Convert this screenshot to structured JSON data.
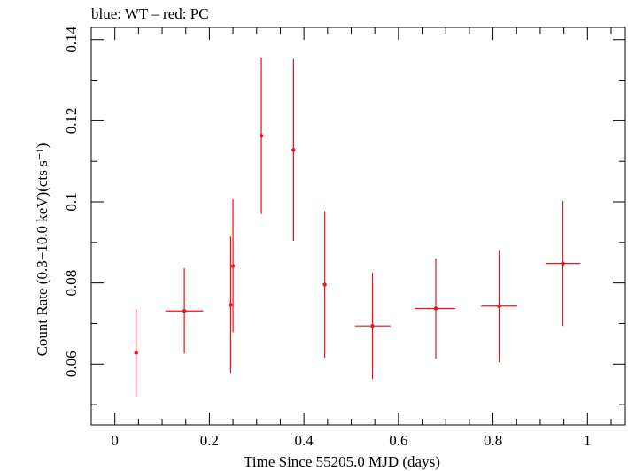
{
  "header": {
    "legend_text": "blue: WT – red: PC"
  },
  "chart_data": {
    "type": "scatter",
    "xlabel": "Time Since 55205.0 MJD (days)",
    "ylabel": "Count Rate (0.3−10.0 keV)(cts s⁻¹)",
    "xlim": [
      -0.05,
      1.08
    ],
    "ylim": [
      0.045,
      0.143
    ],
    "x_ticks": [
      {
        "value": 0,
        "label": "0"
      },
      {
        "value": 0.2,
        "label": "0.2"
      },
      {
        "value": 0.4,
        "label": "0.4"
      },
      {
        "value": 0.6,
        "label": "0.6"
      },
      {
        "value": 0.8,
        "label": "0.8"
      },
      {
        "value": 1,
        "label": "1"
      }
    ],
    "y_ticks": [
      {
        "value": 0.06,
        "label": "0.06"
      },
      {
        "value": 0.08,
        "label": "0.08"
      },
      {
        "value": 0.1,
        "label": "0.1"
      },
      {
        "value": 0.12,
        "label": "0.12"
      },
      {
        "value": 0.14,
        "label": "0.14"
      }
    ],
    "x_minor_step": 0.05,
    "y_minor_step": 0.01,
    "grid": false,
    "series": [
      {
        "color": "#e8141c",
        "points": [
          {
            "x": 0.045,
            "xlo": 0.045,
            "xhi": 0.045,
            "y": 0.0628,
            "ylo": 0.052,
            "yhi": 0.0735
          },
          {
            "x": 0.147,
            "xlo": 0.107,
            "xhi": 0.187,
            "y": 0.0731,
            "ylo": 0.0626,
            "yhi": 0.0836
          },
          {
            "x": 0.245,
            "xlo": 0.245,
            "xhi": 0.245,
            "y": 0.0746,
            "ylo": 0.0578,
            "yhi": 0.0914
          },
          {
            "x": 0.25,
            "xlo": 0.25,
            "xhi": 0.25,
            "y": 0.0842,
            "ylo": 0.0678,
            "yhi": 0.1006
          },
          {
            "x": 0.31,
            "xlo": 0.31,
            "xhi": 0.31,
            "y": 0.1163,
            "ylo": 0.097,
            "yhi": 0.1356
          },
          {
            "x": 0.378,
            "xlo": 0.378,
            "xhi": 0.378,
            "y": 0.1128,
            "ylo": 0.0904,
            "yhi": 0.1352
          },
          {
            "x": 0.444,
            "xlo": 0.444,
            "xhi": 0.444,
            "y": 0.0796,
            "ylo": 0.0616,
            "yhi": 0.0977
          },
          {
            "x": 0.545,
            "xlo": 0.508,
            "xhi": 0.583,
            "y": 0.0694,
            "ylo": 0.0563,
            "yhi": 0.0825
          },
          {
            "x": 0.679,
            "xlo": 0.635,
            "xhi": 0.72,
            "y": 0.0737,
            "ylo": 0.0613,
            "yhi": 0.0861
          },
          {
            "x": 0.813,
            "xlo": 0.775,
            "xhi": 0.851,
            "y": 0.0743,
            "ylo": 0.0605,
            "yhi": 0.0881
          },
          {
            "x": 0.948,
            "xlo": 0.911,
            "xhi": 0.985,
            "y": 0.0848,
            "ylo": 0.0694,
            "yhi": 0.1002
          }
        ]
      }
    ]
  }
}
